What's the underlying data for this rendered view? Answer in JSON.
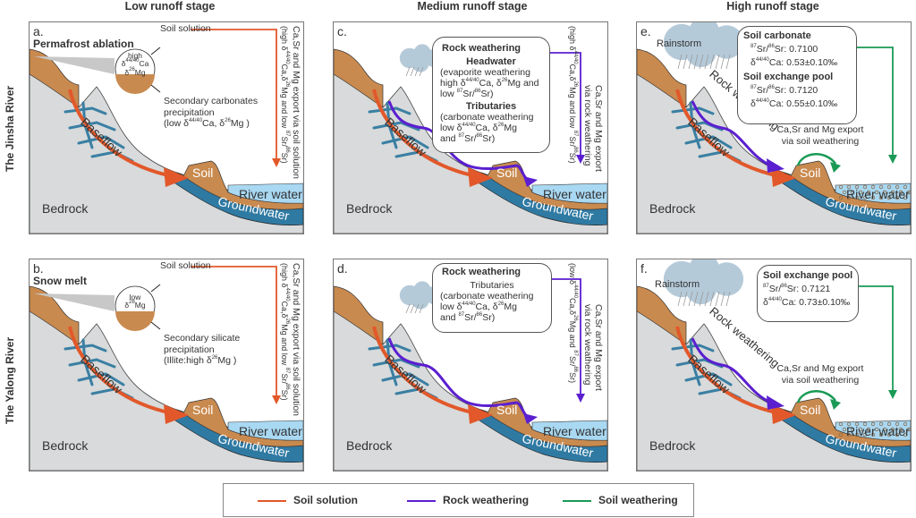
{
  "column_titles": [
    "Low runoff stage",
    "Medium runoff stage",
    "High runoff stage"
  ],
  "row_titles": [
    "The Jinsha River",
    "The Yalong River"
  ],
  "colors": {
    "soil_solution": "#e2582a",
    "rock_weathering": "#5b1fd0",
    "soil_weathering": "#1a9a55",
    "bedrock": "#d8dadb",
    "soil": "#c98a4f",
    "groundwater": "#2f7aa3",
    "river_water": "#a9d8f2",
    "fracture": "#3a7fa3",
    "cloud": "#b5cad9"
  },
  "common_labels": {
    "baseflow": "Baseflow",
    "bedrock": "Bedrock",
    "soil": "Soil",
    "river_water": "River water",
    "groundwater": "Groundwater",
    "rainstorm": "Rainstorm",
    "rock_weathering": "Rock weathering"
  },
  "panels": {
    "a": {
      "letter": "a.",
      "source": "Permafrost ablation",
      "inset": [
        "high",
        "δ44/40Ca",
        "δ26Mg"
      ],
      "soil_solution": "Soil solution",
      "precip": [
        "Secondary carbonates",
        "precipitation",
        "(low δ44/40Ca, δ26Mg )"
      ],
      "export_line1": "Ca,Sr and Mg export via soil solution",
      "export_line2": "(high δ44/40Ca,δ26Mg and low 87Sr/86Sr)"
    },
    "b": {
      "letter": "b.",
      "source": "Snow melt",
      "inset": [
        "low",
        "δ26Mg"
      ],
      "soil_solution": "Soil solution",
      "precip": [
        "Secondary silicate",
        "precipitation",
        "(Illite:high δ26Mg )"
      ],
      "export_line1": "Ca,Sr and Mg export via soil solution",
      "export_line2": "(high δ44/40Ca,δ26Mg and low 87Sr/86Sr)"
    },
    "c": {
      "letter": "c.",
      "box_title": "Rock weathering",
      "headwater_title": "Headwater",
      "headwater": [
        "(evaporite weathering",
        "high δ44/40Ca, δ26Mg and",
        "low 87Sr/86Sr)"
      ],
      "tributaries_title": "Tributaries",
      "tributaries": [
        "(carbonate weathering",
        "low δ44/40Ca, δ26Mg",
        "and 87Sr/86Sr)"
      ],
      "export_line1": "Ca,Sr and Mg export",
      "export_line2": "via rock weathering",
      "export_line3": "(high δ44/40Ca,δ26Mg and low 87Sr/86Sr)"
    },
    "d": {
      "letter": "d.",
      "box_title": "Rock weathering",
      "tributaries_title": "Tributaries",
      "tributaries": [
        "(carbonate weathering",
        "low δ44/40Ca, δ26Mg",
        "and 87Sr/86Sr)"
      ],
      "export_line1": "Ca,Sr and Mg export",
      "export_line2": "via rock weathering",
      "export_line3": "(low δ44/40Ca,δ26Mg and 87Sr/86Sr)"
    },
    "e": {
      "letter": "e.",
      "soil_carbonate_title": "Soil carbonate",
      "soil_carbonate_sr": "Sr/Sr: 0.7100",
      "soil_carbonate_ca": "Ca: 0.53±0.10‰",
      "exchange_title": "Soil exchange pool",
      "exchange_sr": "Sr/Sr: 0.7120",
      "exchange_ca": "Ca: 0.55±0.10‰",
      "export_line1": "Ca,Sr and Mg export",
      "export_line2": "via soil weathering"
    },
    "f": {
      "letter": "f.",
      "exchange_title": "Soil exchange pool",
      "exchange_sr": "Sr/Sr: 0.7121",
      "exchange_ca": "Ca: 0.73±0.10‰",
      "export_line1": "Ca,Sr and Mg export",
      "export_line2": "via soil weathering"
    }
  },
  "legend": [
    {
      "label": "Soil solution",
      "color": "#e2582a"
    },
    {
      "label": "Rock weathering",
      "color": "#5b1fd0"
    },
    {
      "label": "Soil weathering",
      "color": "#1a9a55"
    }
  ]
}
